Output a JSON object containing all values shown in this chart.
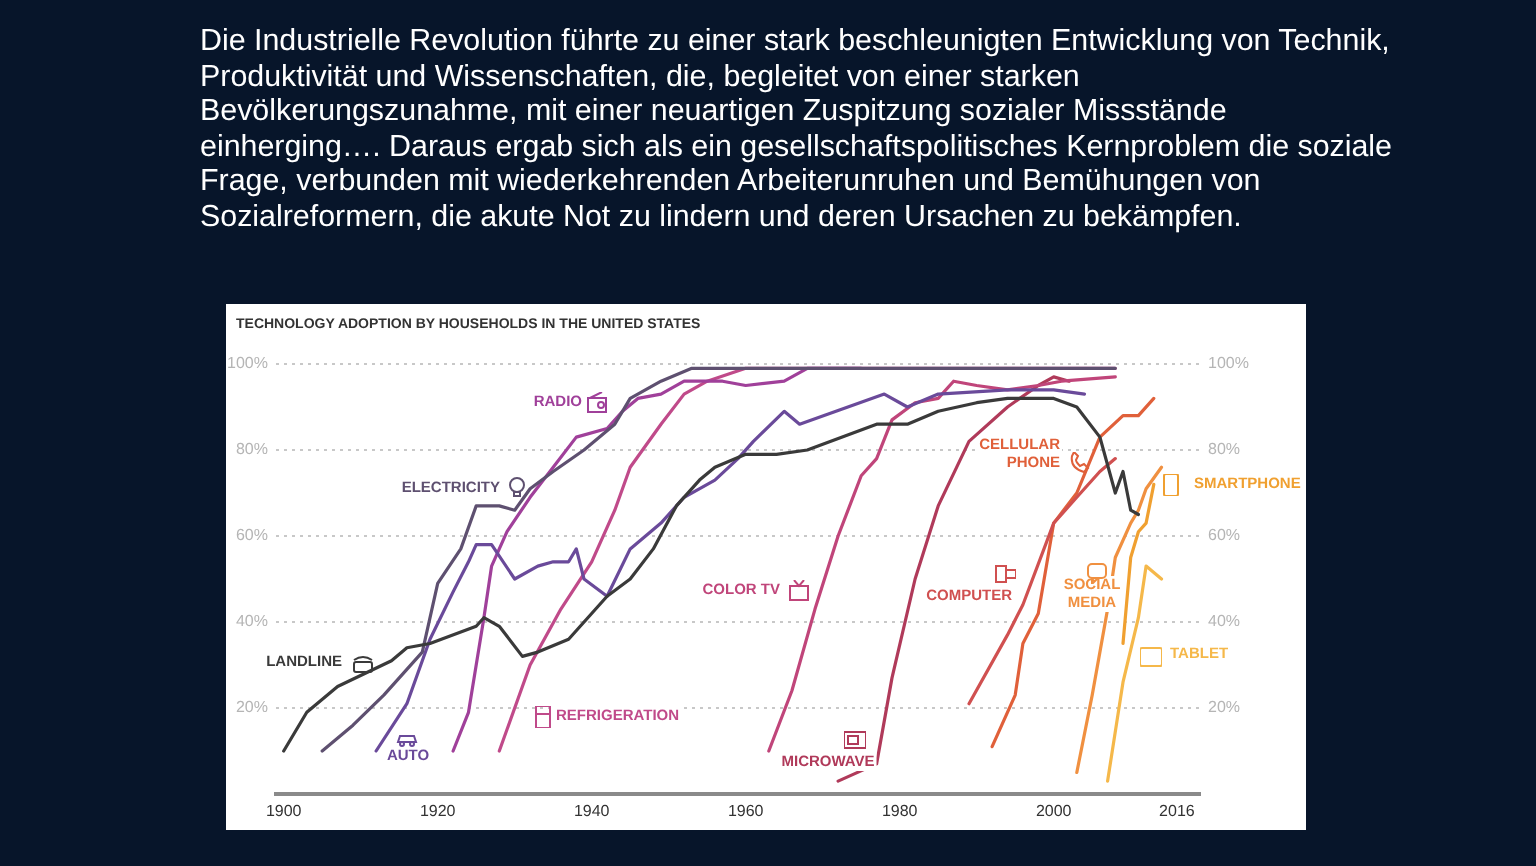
{
  "chart_data": {
    "type": "line",
    "title": "TECHNOLOGY ADOPTION BY HOUSEHOLDS IN THE UNITED STATES",
    "annotations": [
      "Die Industrielle Revolution führte zu einer stark beschleunigten Entwicklung von Technik, Produktivität und Wissenschaften, die, begleitet von einer starken Bevölkerungszunahme, mit einer neuartigen Zuspitzung sozialer Missstände einherging…. Daraus ergab sich als ein gesellschaftspolitisches Kernproblem die soziale Frage, verbunden mit wiederkehrenden Arbeiterunruhen und Bemühungen von Sozialreformern, die akute Not zu lindern und deren Ursachen zu bekämpfen."
    ],
    "xlim": [
      1899,
      2019
    ],
    "xticks": [
      1900,
      1920,
      1940,
      1960,
      1980,
      2000,
      2016
    ],
    "ylim": [
      0,
      100
    ],
    "yticks": [
      {
        "value": 20,
        "label": "20%"
      },
      {
        "value": 40,
        "label": "40%"
      },
      {
        "value": 60,
        "label": "60%"
      },
      {
        "value": 80,
        "label": "80%"
      },
      {
        "value": 100,
        "label": "100%"
      }
    ],
    "y2lim": [
      0,
      100
    ],
    "y2ticks": [
      {
        "value": 20,
        "label": "20%"
      },
      {
        "value": 40,
        "label": "40%"
      },
      {
        "value": 60,
        "label": "60%"
      },
      {
        "value": 80,
        "label": "80%"
      },
      {
        "value": 100,
        "label": "100%"
      }
    ],
    "grid": "y",
    "legend": "top left",
    "marker": "none",
    "line_style": "solid",
    "series": [
      {
        "name": "LANDLINE",
        "color": "#3a3a3a",
        "x": [
          1900,
          1903,
          1907,
          1914,
          1916,
          1919,
          1925,
          1926,
          1928,
          1931,
          1933,
          1937,
          1942,
          1945,
          1948,
          1951,
          1954,
          1956,
          1960,
          1964,
          1968,
          1977,
          1981,
          1985,
          1990,
          1994,
          1998,
          2000,
          2003,
          2006,
          2008,
          2009,
          2010,
          2011
        ],
        "values": [
          10,
          19,
          25,
          31,
          34,
          35,
          39,
          41,
          39,
          32,
          33,
          36,
          46,
          50,
          57,
          67,
          73,
          76,
          79,
          79,
          80,
          86,
          86,
          89,
          91,
          92,
          92,
          92,
          90,
          83,
          70,
          75,
          66,
          65
        ]
      },
      {
        "name": "ELECTRICITY",
        "color": "#5e5070",
        "x": [
          1905,
          1909,
          1913,
          1918,
          1920,
          1923,
          1925,
          1928,
          1930,
          1932,
          1935,
          1939,
          1943,
          1945,
          1949,
          1953,
          1961,
          2008
        ],
        "values": [
          10,
          16,
          23,
          33,
          49,
          57,
          67,
          67,
          66,
          71,
          75,
          80,
          86,
          92,
          96,
          99,
          99,
          99
        ]
      },
      {
        "name": "AUTO",
        "color": "#6a4a9a",
        "x": [
          1912,
          1916,
          1919,
          1922,
          1924,
          1925,
          1927,
          1930,
          1933,
          1935,
          1937,
          1938,
          1939,
          1942,
          1945,
          1949,
          1952,
          1956,
          1959,
          1961,
          1965,
          1967,
          1978,
          1981,
          1985,
          1994,
          2000,
          2004
        ],
        "values": [
          10,
          21,
          36,
          47,
          54,
          58,
          58,
          50,
          53,
          54,
          54,
          57,
          50,
          46,
          57,
          63,
          69,
          73,
          78,
          82,
          89,
          86,
          93,
          90,
          93,
          94,
          94,
          93
        ]
      },
      {
        "name": "RADIO",
        "color": "#a0409a",
        "x": [
          1922,
          1924,
          1926,
          1927,
          1929,
          1932,
          1935,
          1938,
          1942,
          1944,
          1946,
          1949,
          1952,
          1957,
          1960,
          1965,
          1968,
          1975
        ],
        "values": [
          10,
          19,
          41,
          53,
          61,
          69,
          76,
          83,
          85,
          89,
          92,
          93,
          96,
          96,
          95,
          96,
          99,
          99
        ]
      },
      {
        "name": "REFRIGERATION",
        "color": "#c04a8a",
        "x": [
          1928,
          1932,
          1936,
          1940,
          1943,
          1945,
          1949,
          1952,
          1955,
          1960,
          2008
        ],
        "values": [
          10,
          30,
          43,
          54,
          66,
          76,
          86,
          93,
          96,
          99,
          99
        ]
      },
      {
        "name": "COLOR TV",
        "color": "#c0457a",
        "x": [
          1963,
          1966,
          1969,
          1972,
          1975,
          1977,
          1979,
          1982,
          1985,
          1987,
          1990,
          1994,
          1998,
          2001,
          2008
        ],
        "values": [
          10,
          24,
          43,
          60,
          74,
          78,
          87,
          91,
          92,
          96,
          95,
          94,
          95,
          96,
          97
        ]
      },
      {
        "name": "MICROWAVE",
        "color": "#b03a5a",
        "x": [
          1972,
          1977,
          1979,
          1982,
          1985,
          1989,
          1994,
          1998,
          2000,
          2002
        ],
        "values": [
          3,
          7,
          27,
          50,
          67,
          82,
          90,
          95,
          97,
          96
        ]
      },
      {
        "name": "COMPUTER",
        "color": "#d05050",
        "x": [
          1989,
          1994,
          1996,
          2000,
          2003,
          2006,
          2008
        ],
        "values": [
          21,
          37,
          44,
          63,
          69,
          75,
          78
        ]
      },
      {
        "name": "CELLULAR PHONE",
        "color": "#e0603a",
        "x": [
          1992,
          1995,
          1996,
          1998,
          2000,
          2003,
          2006,
          2009,
          2011,
          2013
        ],
        "values": [
          11,
          23,
          35,
          42,
          63,
          70,
          83,
          88,
          88,
          92
        ]
      },
      {
        "name": "SOCIAL MEDIA",
        "color": "#f09040",
        "x": [
          2003,
          2005,
          2007,
          2008,
          2010,
          2011,
          2012,
          2014
        ],
        "values": [
          5,
          23,
          43,
          55,
          63,
          66,
          71,
          76
        ]
      },
      {
        "name": "SMARTPHONE",
        "color": "#f0a030",
        "x": [
          2009,
          2010,
          2011,
          2012,
          2013
        ],
        "values": [
          35,
          55,
          61,
          63,
          72
        ]
      },
      {
        "name": "TABLET",
        "color": "#f5b84a",
        "x": [
          2007,
          2009,
          2011,
          2012,
          2014
        ],
        "values": [
          3,
          26,
          41,
          53,
          50
        ]
      }
    ]
  }
}
